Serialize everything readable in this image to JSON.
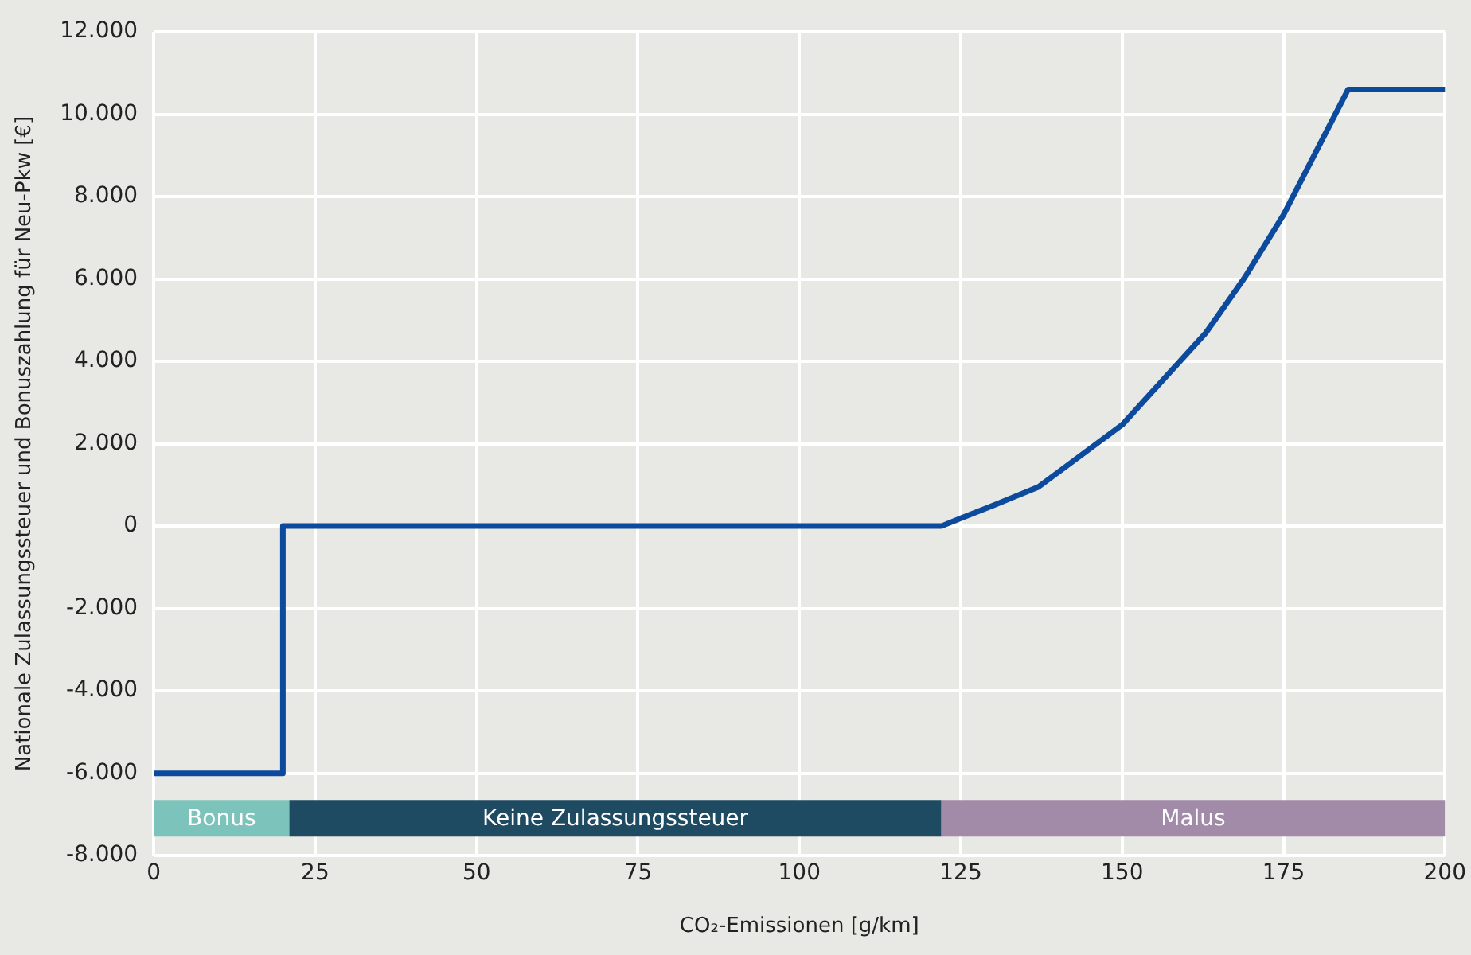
{
  "chart_data": {
    "type": "line",
    "xlabel": "CO₂-Emissionen [g/km]",
    "ylabel": "Nationale Zulassungssteuer und Bonuszahlung für Neu-Pkw [€]",
    "series": [
      {
        "color": "#0b4a9c",
        "x": [
          0,
          20,
          20,
          122,
          125,
          130,
          137,
          150,
          163,
          169,
          175,
          185,
          200
        ],
        "values": [
          -6000,
          -6000,
          0,
          0,
          190,
          500,
          950,
          2460,
          4700,
          6040,
          7560,
          10600,
          10600
        ]
      }
    ],
    "xlim": [
      0,
      200
    ],
    "xticks": [
      0,
      25,
      50,
      75,
      100,
      125,
      150,
      175,
      200
    ],
    "ylim": [
      -8000,
      12000
    ],
    "yticks": [
      {
        "value": -8000,
        "label": "-8.000"
      },
      {
        "value": -6000,
        "label": "-6.000"
      },
      {
        "value": -4000,
        "label": "-4.000"
      },
      {
        "value": -2000,
        "label": "-2.000"
      },
      {
        "value": 0,
        "label": "0"
      },
      {
        "value": 2000,
        "label": "2.000"
      },
      {
        "value": 4000,
        "label": "4.000"
      },
      {
        "value": 6000,
        "label": "6.000"
      },
      {
        "value": 8000,
        "label": "8.000"
      },
      {
        "value": 10000,
        "label": "10.000"
      },
      {
        "value": 12000,
        "label": "12.000"
      }
    ],
    "bands": [
      {
        "axis": "x",
        "from": 0,
        "to": 21,
        "label": "Bonus",
        "color": "#7cc4bb"
      },
      {
        "axis": "x",
        "from": 21,
        "to": 122,
        "label": "Keine Zulassungssteuer",
        "color": "#1e4a62"
      },
      {
        "axis": "x",
        "from": 122,
        "to": 200,
        "label": "Malus",
        "color": "#a28ba8"
      }
    ],
    "grid": true,
    "marker": "none",
    "line_style": "solid",
    "legend": false
  }
}
